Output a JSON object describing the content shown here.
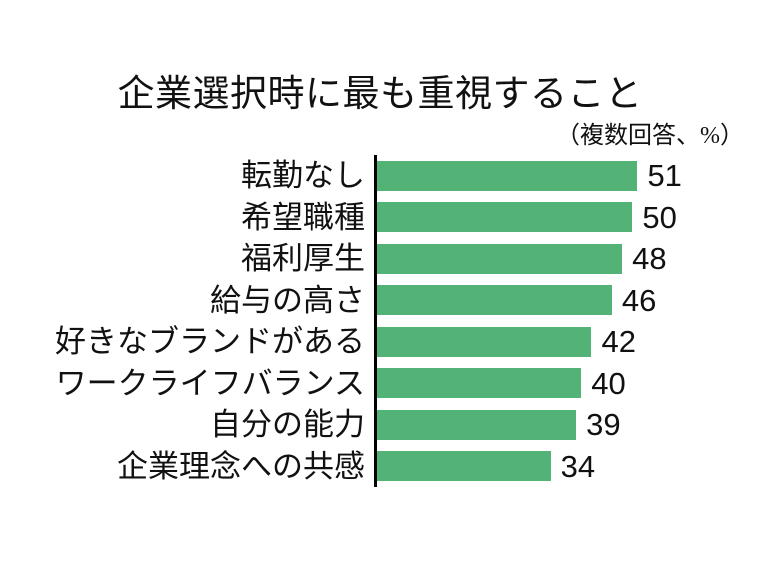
{
  "chart": {
    "title": "企業選択時に最も重視すること",
    "subtitle": "（複数回答、%）"
  },
  "chart_data": {
    "type": "bar",
    "orientation": "horizontal",
    "title": "企業選択時に最も重視すること",
    "subtitle": "（複数回答、%）",
    "categories": [
      "転勤なし",
      "希望職種",
      "福利厚生",
      "給与の高さ",
      "好きなブランドがある",
      "ワークライフバランス",
      "自分の能力",
      "企業理念への共感"
    ],
    "values": [
      51,
      50,
      48,
      46,
      42,
      40,
      39,
      34
    ],
    "value_labels_shown": true,
    "xlabel": "",
    "ylabel": "",
    "xlim": [
      0,
      75
    ],
    "grid": false,
    "legend": false,
    "bar_color": "#53b276",
    "axis_color": "#000000",
    "text_color": "#111111",
    "background_color": "#ffffff"
  }
}
